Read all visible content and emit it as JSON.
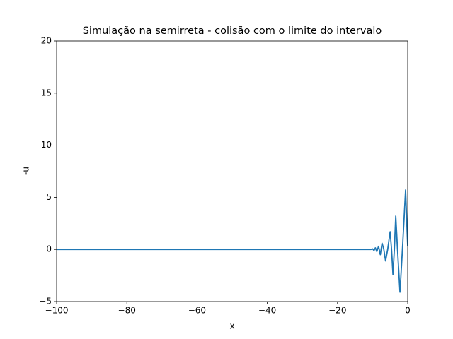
{
  "chart_data": {
    "type": "line",
    "title": "Simulação na semirreta -  colisão com o limite do intervalo",
    "xlabel": "x",
    "ylabel": "-u",
    "x": [
      -100,
      -12,
      -10.5,
      -10,
      -9.6,
      -9.2,
      -8.8,
      -8.3,
      -7.8,
      -7.3,
      -6.8,
      -6.3,
      -5.7,
      -5.0,
      -4.6,
      -4.2,
      -3.8,
      -3.4,
      -2.9,
      -2.2,
      -1.5,
      -0.6,
      0
    ],
    "series": [
      {
        "color": "#1f77b4",
        "values": [
          0,
          0,
          0,
          0.05,
          -0.1,
          0.15,
          -0.2,
          0.3,
          -0.5,
          0.6,
          0,
          -1.1,
          0,
          1.7,
          0,
          -2.4,
          0,
          3.2,
          0,
          -4.1,
          0,
          5.7,
          0.3
        ]
      }
    ],
    "xlim": [
      -100,
      0
    ],
    "xticks": [
      {
        "value": -100,
        "label": "−100"
      },
      {
        "value": -80,
        "label": "−80"
      },
      {
        "value": -60,
        "label": "−60"
      },
      {
        "value": -40,
        "label": "−40"
      },
      {
        "value": -20,
        "label": "−20"
      },
      0
    ],
    "ylim": [
      -5,
      20
    ],
    "yticks": [
      {
        "value": -5,
        "label": "−5"
      },
      0,
      5,
      10,
      15,
      20
    ],
    "grid": false
  }
}
